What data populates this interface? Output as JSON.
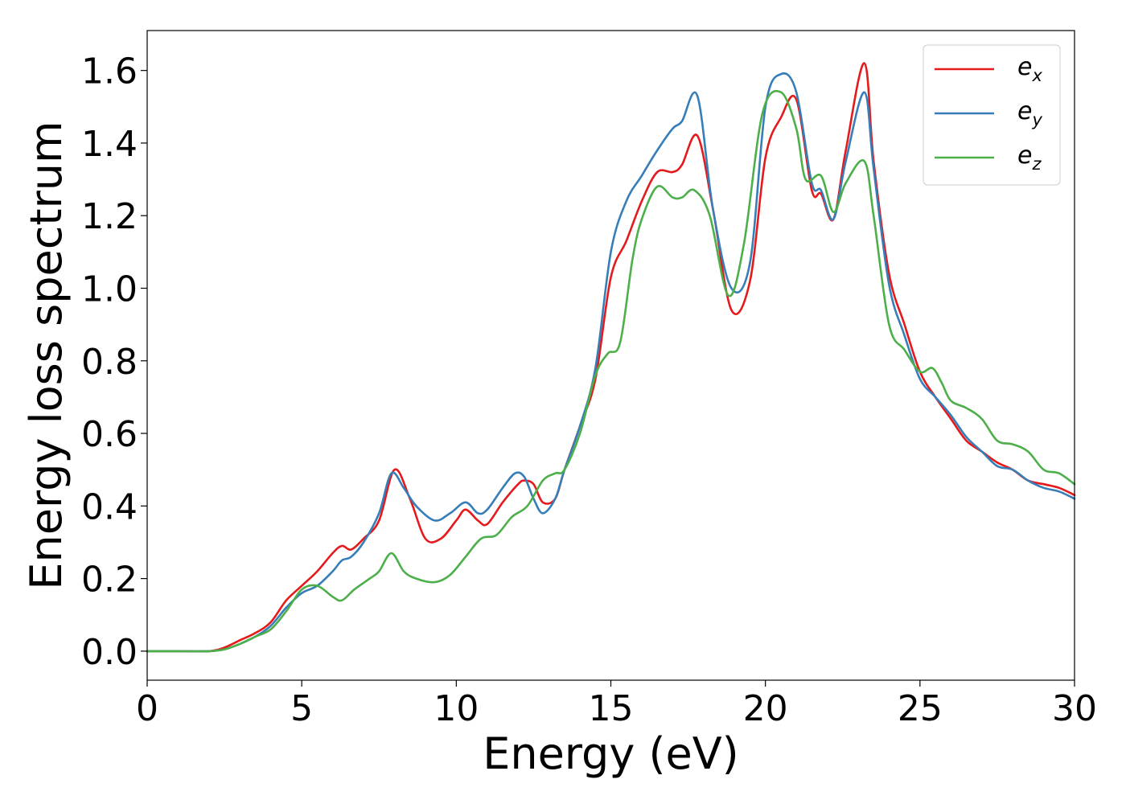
{
  "chart_data": {
    "type": "line",
    "xlabel": "Energy (eV)",
    "ylabel": "Energy loss spectrum",
    "xlim": [
      0,
      30
    ],
    "ylim": [
      -0.08,
      1.71
    ],
    "xticks": [
      0,
      5,
      10,
      15,
      20,
      25,
      30
    ],
    "xtick_labels": [
      "0",
      "5",
      "10",
      "15",
      "20",
      "25",
      "30"
    ],
    "yticks": [
      0.0,
      0.2,
      0.4,
      0.6,
      0.8,
      1.0,
      1.2,
      1.4,
      1.6
    ],
    "ytick_labels": [
      "0.0",
      "0.2",
      "0.4",
      "0.6",
      "0.8",
      "1.0",
      "1.2",
      "1.4",
      "1.6"
    ],
    "grid": false,
    "legend_position": "top-right",
    "series": [
      {
        "name": "e_x",
        "legend_base": "e",
        "legend_sub": "x",
        "color": "#e41a1c",
        "x": [
          0,
          1,
          2,
          2.5,
          3,
          3.5,
          4,
          4.5,
          5,
          5.5,
          6,
          6.3,
          6.6,
          7,
          7.5,
          8,
          8.5,
          9,
          9.5,
          10,
          10.3,
          10.7,
          11,
          11.5,
          12,
          12.2,
          12.5,
          12.8,
          13.2,
          13.5,
          14,
          14.5,
          15,
          15.5,
          16,
          16.5,
          17,
          17.3,
          17.8,
          18.3,
          18.9,
          19.5,
          20,
          20.5,
          21,
          21.5,
          21.8,
          22.2,
          22.6,
          23.2,
          23.5,
          24,
          24.5,
          25,
          25.5,
          26,
          26.5,
          27,
          27.5,
          28,
          28.5,
          29,
          29.5,
          30
        ],
        "y": [
          0.0,
          0.0,
          0.0,
          0.01,
          0.03,
          0.05,
          0.08,
          0.14,
          0.18,
          0.22,
          0.27,
          0.29,
          0.28,
          0.31,
          0.36,
          0.5,
          0.42,
          0.31,
          0.31,
          0.36,
          0.39,
          0.36,
          0.35,
          0.41,
          0.46,
          0.47,
          0.46,
          0.41,
          0.42,
          0.5,
          0.62,
          0.75,
          1.03,
          1.13,
          1.24,
          1.32,
          1.32,
          1.34,
          1.42,
          1.22,
          0.94,
          1.02,
          1.36,
          1.47,
          1.52,
          1.27,
          1.26,
          1.19,
          1.38,
          1.62,
          1.35,
          1.04,
          0.9,
          0.77,
          0.7,
          0.64,
          0.58,
          0.55,
          0.52,
          0.5,
          0.47,
          0.46,
          0.45,
          0.43
        ]
      },
      {
        "name": "e_y",
        "legend_base": "e",
        "legend_sub": "y",
        "color": "#377eb8",
        "x": [
          0,
          1,
          2,
          2.5,
          3,
          3.5,
          4,
          4.5,
          5,
          5.5,
          6,
          6.3,
          6.6,
          7,
          7.5,
          7.9,
          8.3,
          8.7,
          9.3,
          9.8,
          10.3,
          10.7,
          11,
          11.5,
          11.9,
          12.2,
          12.5,
          12.8,
          13.2,
          13.5,
          14,
          14.5,
          15,
          15.5,
          16,
          16.5,
          17,
          17.3,
          17.8,
          18.3,
          18.9,
          19.5,
          20,
          20.5,
          21,
          21.5,
          21.8,
          22.2,
          22.6,
          23.2,
          23.5,
          24,
          24.5,
          25,
          25.5,
          26,
          26.5,
          27,
          27.5,
          28,
          28.5,
          29,
          29.5,
          30
        ],
        "y": [
          0.0,
          0.0,
          0.0,
          0.005,
          0.02,
          0.04,
          0.07,
          0.12,
          0.16,
          0.18,
          0.22,
          0.25,
          0.26,
          0.3,
          0.38,
          0.49,
          0.45,
          0.4,
          0.36,
          0.38,
          0.41,
          0.38,
          0.39,
          0.45,
          0.49,
          0.48,
          0.42,
          0.38,
          0.42,
          0.5,
          0.62,
          0.78,
          1.1,
          1.24,
          1.31,
          1.38,
          1.44,
          1.46,
          1.53,
          1.22,
          1.0,
          1.07,
          1.5,
          1.59,
          1.54,
          1.29,
          1.27,
          1.19,
          1.35,
          1.54,
          1.33,
          1.01,
          0.87,
          0.75,
          0.7,
          0.65,
          0.59,
          0.55,
          0.51,
          0.5,
          0.47,
          0.45,
          0.44,
          0.42
        ]
      },
      {
        "name": "e_z",
        "legend_base": "e",
        "legend_sub": "z",
        "color": "#4daf4a",
        "x": [
          0,
          1,
          2,
          2.5,
          3,
          3.5,
          4,
          4.5,
          5,
          5.5,
          6,
          6.3,
          6.7,
          7.2,
          7.5,
          7.9,
          8.3,
          8.7,
          9.3,
          9.8,
          10.3,
          10.8,
          11.3,
          11.8,
          12.3,
          12.8,
          13.2,
          13.5,
          14,
          14.5,
          14.9,
          15.3,
          15.7,
          16,
          16.5,
          17,
          17.3,
          17.7,
          18.2,
          18.8,
          19.3,
          19.9,
          20.5,
          21,
          21.3,
          21.8,
          22.2,
          22.6,
          23.2,
          23.5,
          24,
          24.5,
          25,
          25.4,
          25.7,
          26,
          26.5,
          27,
          27.5,
          28,
          28.5,
          29,
          29.5,
          30
        ],
        "y": [
          0.0,
          0.0,
          0.0,
          0.005,
          0.02,
          0.04,
          0.06,
          0.11,
          0.17,
          0.18,
          0.15,
          0.14,
          0.17,
          0.2,
          0.22,
          0.27,
          0.22,
          0.2,
          0.19,
          0.21,
          0.26,
          0.31,
          0.32,
          0.37,
          0.4,
          0.47,
          0.49,
          0.5,
          0.6,
          0.76,
          0.82,
          0.85,
          1.08,
          1.19,
          1.28,
          1.25,
          1.25,
          1.27,
          1.2,
          0.98,
          1.12,
          1.48,
          1.54,
          1.44,
          1.3,
          1.31,
          1.21,
          1.29,
          1.35,
          1.2,
          0.9,
          0.83,
          0.77,
          0.78,
          0.74,
          0.69,
          0.67,
          0.64,
          0.58,
          0.57,
          0.55,
          0.5,
          0.49,
          0.46
        ]
      }
    ]
  }
}
